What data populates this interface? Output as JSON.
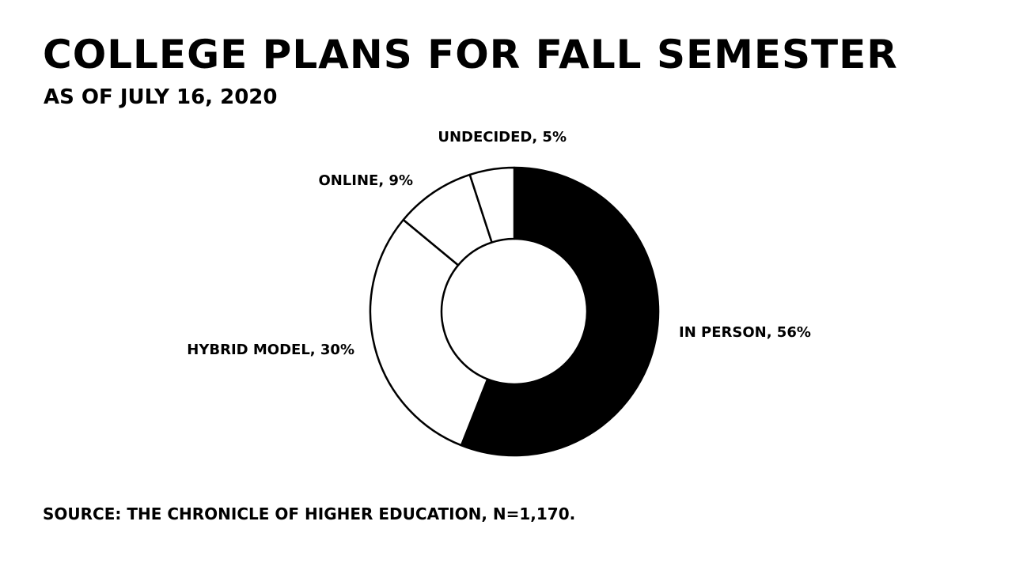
{
  "header": {
    "title": "COLLEGE PLANS FOR FALL SEMESTER",
    "subtitle": "AS OF JULY 16, 2020"
  },
  "footer": {
    "source": "SOURCE: THE CHRONICLE OF HIGHER EDUCATION, N=1,170."
  },
  "chart_data": {
    "type": "pie",
    "style": "donut",
    "title": "COLLEGE PLANS FOR FALL SEMESTER",
    "subtitle": "AS OF JULY 16, 2020",
    "slices": [
      {
        "name": "IN PERSON",
        "value": 56,
        "label": "IN PERSON, 56%",
        "color": "#000000"
      },
      {
        "name": "HYBRID MODEL",
        "value": 30,
        "label": "HYBRID MODEL, 30%",
        "color": "#ffffff"
      },
      {
        "name": "ONLINE",
        "value": 9,
        "label": "ONLINE, 9%",
        "color": "#ffffff"
      },
      {
        "name": "UNDECIDED",
        "value": 5,
        "label": "UNDECIDED, 5%",
        "color": "#ffffff"
      }
    ],
    "start_angle": "12 o'clock",
    "direction": "clockwise",
    "legend": "none",
    "labels": "outside"
  }
}
